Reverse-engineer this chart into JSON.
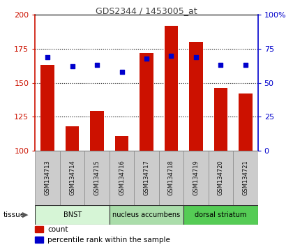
{
  "title": "GDS2344 / 1453005_at",
  "samples": [
    "GSM134713",
    "GSM134714",
    "GSM134715",
    "GSM134716",
    "GSM134717",
    "GSM134718",
    "GSM134719",
    "GSM134720",
    "GSM134721"
  ],
  "counts": [
    163,
    118,
    129,
    111,
    172,
    192,
    180,
    146,
    142
  ],
  "percentiles": [
    69,
    62,
    63,
    58,
    68,
    70,
    69,
    63,
    63
  ],
  "tissue_groups": [
    {
      "label": "BNST",
      "start": 0,
      "end": 3,
      "color": "#d6f5d6"
    },
    {
      "label": "nucleus accumbens",
      "start": 3,
      "end": 6,
      "color": "#aaddaa"
    },
    {
      "label": "dorsal striatum",
      "start": 6,
      "end": 9,
      "color": "#55cc55"
    }
  ],
  "ylim_left": [
    100,
    200
  ],
  "ylim_right": [
    0,
    100
  ],
  "yticks_left": [
    100,
    125,
    150,
    175,
    200
  ],
  "yticks_right": [
    0,
    25,
    50,
    75,
    100
  ],
  "bar_color": "#cc1100",
  "dot_color": "#0000cc",
  "grid_color": "#000000",
  "sample_bg_color": "#cccccc",
  "plot_bg": "#ffffff",
  "title_color": "#444444",
  "left_axis_color": "#cc1100",
  "right_axis_color": "#0000cc",
  "bar_width": 0.55
}
